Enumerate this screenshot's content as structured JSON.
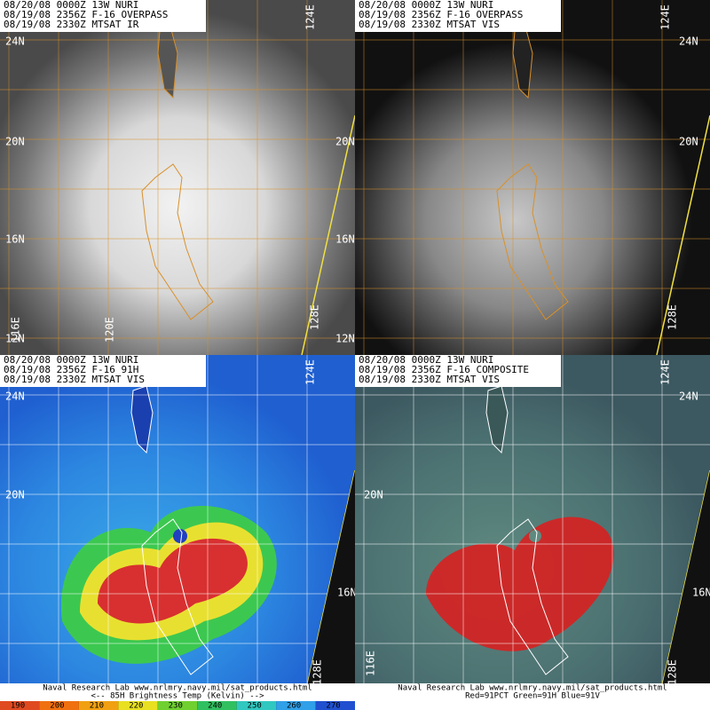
{
  "panels": [
    {
      "header": [
        "08/20/08 0000Z 13W NURI",
        "08/19/08 2356Z F-16 OVERPASS",
        "08/19/08 2330Z MTSAT IR"
      ],
      "labels": [
        "24N",
        "20N",
        "16N",
        "12N",
        "20N",
        "16N",
        "12N",
        "124E",
        "128E",
        "116E",
        "120E"
      ]
    },
    {
      "header": [
        "08/20/08 0000Z 13W NURI",
        "08/19/08 2356Z F-16 OVERPASS",
        "08/19/08 2330Z MTSAT VIS"
      ],
      "labels": [
        "24N",
        "20N",
        "124E",
        "128E"
      ]
    },
    {
      "header": [
        "08/20/08 0000Z 13W NURI",
        "08/19/08 2356Z F-16 91H",
        "08/19/08 2330Z MTSAT VIS"
      ],
      "labels": [
        "24N",
        "20N",
        "16N",
        "124E",
        "128E"
      ]
    },
    {
      "header": [
        "08/20/08 0000Z 13W NURI",
        "08/19/08 2356Z F-16 COMPOSITE",
        "08/19/08 2330Z MTSAT VIS"
      ],
      "labels": [
        "24N",
        "20N",
        "16N",
        "124E",
        "128E",
        "116E"
      ]
    }
  ],
  "footers": [
    {
      "lines": [
        "Naval Research Lab  www.nrlmry.navy.mil/sat_products.html",
        "<--  85H Brightness Temp (Kelvin)  -->"
      ],
      "colorbar": [
        190,
        200,
        210,
        220,
        230,
        240,
        250,
        260,
        270
      ]
    },
    {
      "lines": [
        "Naval Research Lab  www.nrlmry.navy.mil/sat_products.html",
        "Red=91PCT  Green=91H  Blue=91V"
      ]
    }
  ]
}
